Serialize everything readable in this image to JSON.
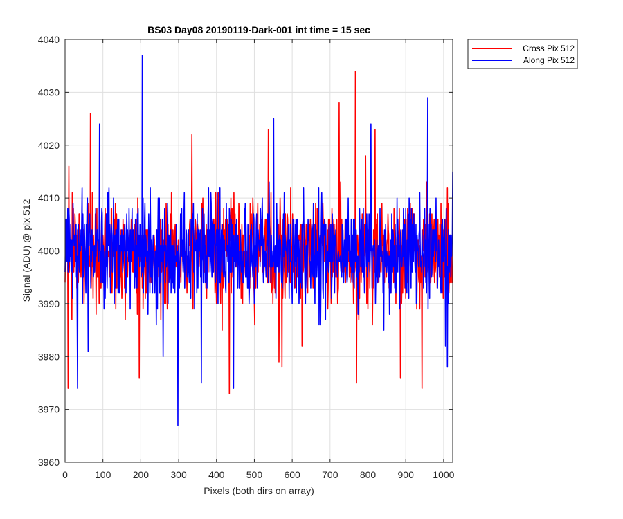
{
  "chart_data": {
    "type": "line",
    "title": "BS03 Day08 20190119-Dark-001 int time = 15 sec",
    "xlabel": "Pixels (both dirs on array)",
    "ylabel": "Signal (ADU) @ pix 512",
    "xlim": [
      0,
      1024
    ],
    "ylim": [
      3960,
      4040
    ],
    "xticks": [
      0,
      100,
      200,
      300,
      400,
      500,
      600,
      700,
      800,
      900,
      1000
    ],
    "yticks": [
      3960,
      3970,
      3980,
      3990,
      4000,
      4010,
      4020,
      4030,
      4040
    ],
    "grid": true,
    "legend_position": "outside top-right",
    "notes_on_density": "Each series has ~1024 points; sparse anchors below are visually-read extremes, remaining points vary within ~3986-4014 ADU around 4000.",
    "series": [
      {
        "name": "Cross Pix 512",
        "color": "#ff0000",
        "anchors": [
          [
            0,
            3994
          ],
          [
            4,
            4006
          ],
          [
            8,
            3974
          ],
          [
            10,
            4016
          ],
          [
            18,
            3987
          ],
          [
            40,
            4001
          ],
          [
            67,
            4026
          ],
          [
            90,
            3990
          ],
          [
            110,
            4003
          ],
          [
            137,
            3993
          ],
          [
            157,
            3993
          ],
          [
            182,
            4002
          ],
          [
            196,
            3976
          ],
          [
            205,
            4014
          ],
          [
            253,
            3987
          ],
          [
            300,
            4001
          ],
          [
            335,
            4022
          ],
          [
            368,
            4000
          ],
          [
            398,
            4011
          ],
          [
            434,
            3973
          ],
          [
            460,
            4007
          ],
          [
            501,
            3986
          ],
          [
            537,
            4023
          ],
          [
            559,
            4003
          ],
          [
            565,
            3979
          ],
          [
            573,
            3978
          ],
          [
            596,
            4012
          ],
          [
            626,
            3982
          ],
          [
            676,
            3996
          ],
          [
            718,
            4006
          ],
          [
            724,
            4028
          ],
          [
            740,
            4006
          ],
          [
            767,
            4034
          ],
          [
            770,
            3975
          ],
          [
            794,
            4018
          ],
          [
            812,
            3986
          ],
          [
            819,
            4023
          ],
          [
            886,
            3976
          ],
          [
            934,
            3995
          ],
          [
            943,
            3974
          ],
          [
            1000,
            4004
          ],
          [
            1024,
            3994
          ]
        ]
      },
      {
        "name": "Along Pix 512",
        "color": "#0000ff",
        "anchors": [
          [
            0,
            3996
          ],
          [
            2,
            4006
          ],
          [
            20,
            3991
          ],
          [
            33,
            3974
          ],
          [
            61,
            3981
          ],
          [
            91,
            4024
          ],
          [
            110,
            4007
          ],
          [
            144,
            4001
          ],
          [
            181,
            4000
          ],
          [
            204,
            4037
          ],
          [
            213,
            4003
          ],
          [
            259,
            3980
          ],
          [
            298,
            3967
          ],
          [
            300,
            4001
          ],
          [
            360,
            3975
          ],
          [
            401,
            4001
          ],
          [
            445,
            3974
          ],
          [
            480,
            3995
          ],
          [
            540,
            4005
          ],
          [
            551,
            4025
          ],
          [
            600,
            3990
          ],
          [
            624,
            3996
          ],
          [
            657,
            4000
          ],
          [
            688,
            3987
          ],
          [
            734,
            4004
          ],
          [
            778,
            4008
          ],
          [
            808,
            4024
          ],
          [
            842,
            3985
          ],
          [
            900,
            4008
          ],
          [
            928,
            3990
          ],
          [
            958,
            4029
          ],
          [
            980,
            4010
          ],
          [
            1005,
            3982
          ],
          [
            1010,
            3978
          ],
          [
            1024,
            4015
          ]
        ]
      }
    ]
  }
}
